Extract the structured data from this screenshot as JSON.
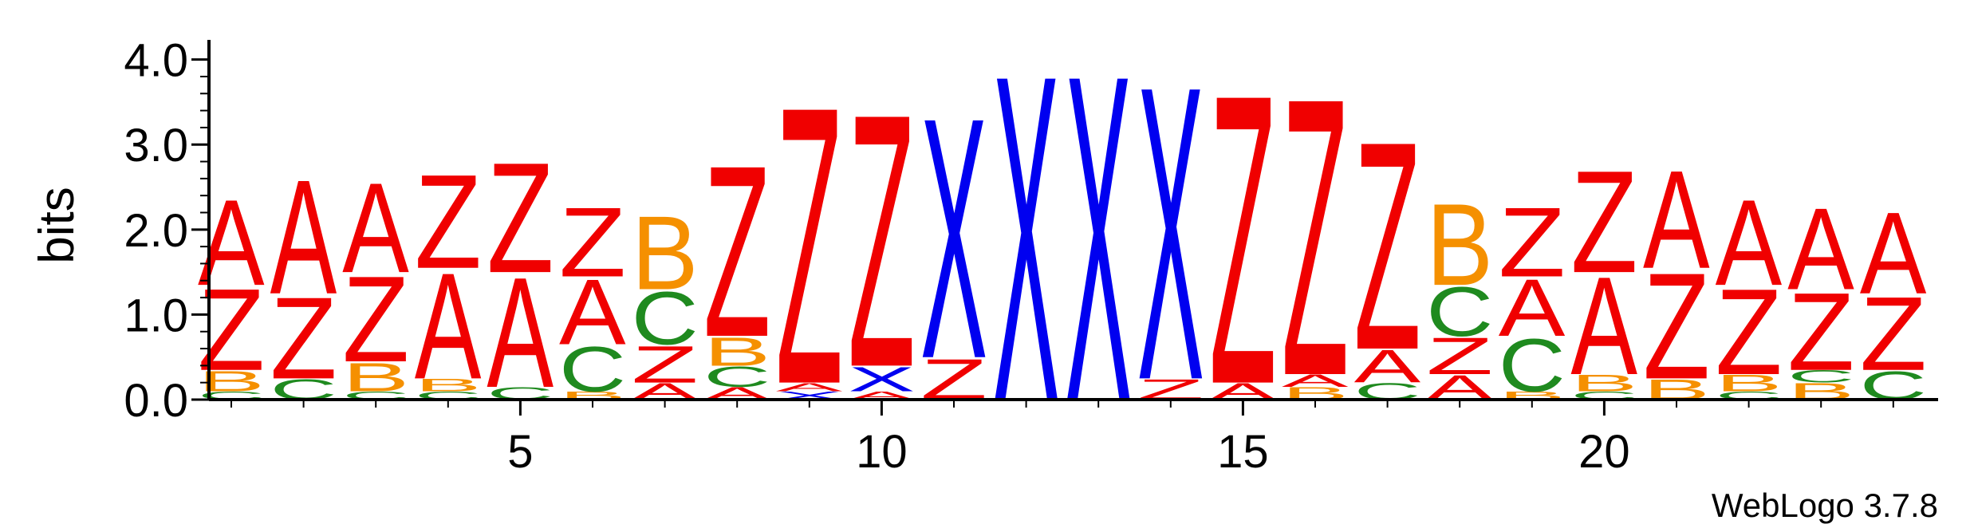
{
  "chart_data": {
    "type": "sequence-logo",
    "ylabel": "bits",
    "ylim": [
      0,
      4.1
    ],
    "yticks": [
      "0.0",
      "1.0",
      "2.0",
      "3.0",
      "4.0"
    ],
    "xticks": [
      5,
      10,
      15,
      20
    ],
    "credit": "WebLogo 3.7.8",
    "colors": {
      "A": "#f00000",
      "Z": "#f00000",
      "B": "#f59000",
      "C": "#1f8a1f",
      "X": "#0000f0"
    },
    "positions": [
      {
        "pos": 1,
        "stack": [
          [
            "C",
            0.1
          ],
          [
            "B",
            0.25
          ],
          [
            "Z",
            1.0
          ],
          [
            "A",
            1.05
          ]
        ]
      },
      {
        "pos": 2,
        "stack": [
          [
            "C",
            0.25
          ],
          [
            "Z",
            1.0
          ],
          [
            "A",
            1.4
          ]
        ]
      },
      {
        "pos": 3,
        "stack": [
          [
            "C",
            0.1
          ],
          [
            "B",
            0.35
          ],
          [
            "Z",
            1.05
          ],
          [
            "A",
            1.1
          ]
        ]
      },
      {
        "pos": 4,
        "stack": [
          [
            "C",
            0.1
          ],
          [
            "B",
            0.15
          ],
          [
            "A",
            1.3
          ],
          [
            "Z",
            1.15
          ]
        ]
      },
      {
        "pos": 5,
        "stack": [
          [
            "C",
            0.15
          ],
          [
            "A",
            1.35
          ],
          [
            "Z",
            1.35
          ]
        ]
      },
      {
        "pos": 6,
        "stack": [
          [
            "B",
            0.1
          ],
          [
            "C",
            0.55
          ],
          [
            "A",
            0.8
          ],
          [
            "Z",
            0.85
          ]
        ]
      },
      {
        "pos": 7,
        "stack": [
          [
            "A",
            0.2
          ],
          [
            "Z",
            0.45
          ],
          [
            "C",
            0.65
          ],
          [
            "B",
            0.9
          ]
        ]
      },
      {
        "pos": 8,
        "stack": [
          [
            "A",
            0.15
          ],
          [
            "C",
            0.25
          ],
          [
            "B",
            0.35
          ],
          [
            "Z",
            2.1
          ]
        ]
      },
      {
        "pos": 9,
        "stack": [
          [
            "X",
            0.1
          ],
          [
            "A",
            0.1
          ],
          [
            "Z",
            3.4
          ]
        ]
      },
      {
        "pos": 10,
        "stack": [
          [
            "A",
            0.1
          ],
          [
            "X",
            0.3
          ],
          [
            "Z",
            3.1
          ]
        ]
      },
      {
        "pos": 11,
        "stack": [
          [
            "Z",
            0.5
          ],
          [
            "X",
            2.95
          ]
        ]
      },
      {
        "pos": 12,
        "stack": [
          [
            "X",
            4.0
          ]
        ]
      },
      {
        "pos": 13,
        "stack": [
          [
            "X",
            4.0
          ]
        ]
      },
      {
        "pos": 14,
        "stack": [
          [
            "Z",
            0.25
          ],
          [
            "X",
            3.6
          ]
        ]
      },
      {
        "pos": 15,
        "stack": [
          [
            "A",
            0.2
          ],
          [
            "Z",
            3.55
          ]
        ]
      },
      {
        "pos": 16,
        "stack": [
          [
            "B",
            0.15
          ],
          [
            "A",
            0.15
          ],
          [
            "Z",
            3.4
          ]
        ]
      },
      {
        "pos": 17,
        "stack": [
          [
            "C",
            0.2
          ],
          [
            "A",
            0.4
          ],
          [
            "Z",
            2.55
          ]
        ]
      },
      {
        "pos": 18,
        "stack": [
          [
            "A",
            0.3
          ],
          [
            "Z",
            0.45
          ],
          [
            "C",
            0.6
          ],
          [
            "B",
            1.0
          ]
        ]
      },
      {
        "pos": 19,
        "stack": [
          [
            "B",
            0.1
          ],
          [
            "C",
            0.65
          ],
          [
            "A",
            0.7
          ],
          [
            "Z",
            0.85
          ]
        ]
      },
      {
        "pos": 20,
        "stack": [
          [
            "C",
            0.1
          ],
          [
            "B",
            0.2
          ],
          [
            "A",
            1.2
          ],
          [
            "Z",
            1.25
          ]
        ]
      },
      {
        "pos": 21,
        "stack": [
          [
            "B",
            0.25
          ],
          [
            "Z",
            1.3
          ],
          [
            "A",
            1.2
          ]
        ]
      },
      {
        "pos": 22,
        "stack": [
          [
            "C",
            0.1
          ],
          [
            "B",
            0.2
          ],
          [
            "Z",
            1.05
          ],
          [
            "A",
            1.05
          ]
        ]
      },
      {
        "pos": 23,
        "stack": [
          [
            "B",
            0.2
          ],
          [
            "C",
            0.15
          ],
          [
            "Z",
            0.95
          ],
          [
            "A",
            1.0
          ]
        ]
      },
      {
        "pos": 24,
        "stack": [
          [
            "C",
            0.35
          ],
          [
            "Z",
            0.9
          ],
          [
            "A",
            1.0
          ]
        ]
      }
    ]
  }
}
